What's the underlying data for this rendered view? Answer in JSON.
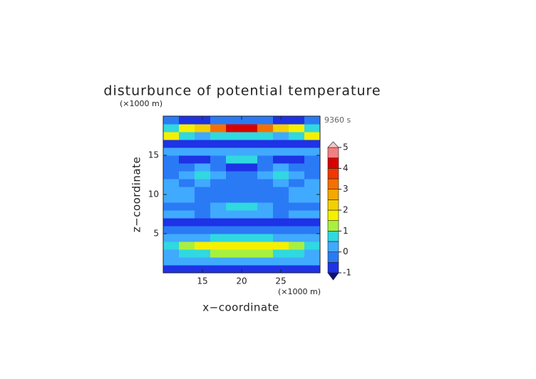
{
  "chart_data": {
    "type": "contour",
    "title": "disturbunce of potential temperature",
    "x_label": "x−coordinate",
    "y_label": "z−coordinate",
    "x_unit": "(×1000 m)",
    "y_unit": "(×1000 m)",
    "annotation": "9360 s",
    "xlim": [
      10,
      30
    ],
    "ylim": [
      0,
      20
    ],
    "xticks": [
      15,
      20,
      25
    ],
    "yticks": [
      5,
      10,
      15
    ],
    "x": [
      11,
      13,
      15,
      17,
      19,
      21,
      23,
      25,
      27,
      29
    ],
    "y": [
      0.5,
      1.5,
      2.5,
      3.5,
      4.5,
      5.5,
      6.5,
      7.5,
      8.5,
      9.5,
      10.5,
      11.5,
      12.5,
      13.5,
      14.5,
      15.5,
      16.5,
      17.5,
      18.5,
      19.5
    ],
    "z": [
      [
        -0.8,
        -0.8,
        -0.8,
        -0.8,
        -0.8,
        -0.8,
        -0.8,
        -0.8,
        -0.8,
        -0.8
      ],
      [
        0,
        0,
        0.2,
        0.3,
        0.3,
        0.3,
        0.3,
        0.2,
        0,
        0
      ],
      [
        0.3,
        0.5,
        0.8,
        1,
        1.2,
        1.2,
        1,
        0.8,
        0.5,
        0.3
      ],
      [
        0.8,
        1.2,
        1.5,
        1.8,
        1.8,
        1.8,
        1.8,
        1.5,
        1.2,
        0.8
      ],
      [
        0.2,
        0.3,
        0.4,
        0.5,
        0.5,
        0.5,
        0.5,
        0.4,
        0.3,
        0.2
      ],
      [
        -0.4,
        -0.4,
        -0.4,
        -0.4,
        -0.4,
        -0.4,
        -0.4,
        -0.4,
        -0.4,
        -0.4
      ],
      [
        -0.8,
        -0.7,
        -0.8,
        -0.9,
        -0.9,
        -0.9,
        -0.9,
        -0.8,
        -0.7,
        -0.8
      ],
      [
        0,
        0,
        -0.1,
        0,
        0.3,
        0.3,
        0,
        -0.1,
        0,
        0
      ],
      [
        -0.3,
        -0.3,
        -0.2,
        0,
        0.5,
        0.5,
        0,
        -0.2,
        -0.3,
        -0.3
      ],
      [
        0.2,
        0,
        -0.2,
        -0.2,
        -0.1,
        -0.1,
        -0.2,
        -0.2,
        0,
        0.2
      ],
      [
        0.4,
        0,
        -0.2,
        -0.3,
        -0.2,
        -0.2,
        -0.3,
        -0.2,
        0,
        0.4
      ],
      [
        0,
        -0.1,
        0,
        -0.2,
        -0.2,
        -0.2,
        -0.2,
        0,
        -0.1,
        0
      ],
      [
        -0.2,
        0.3,
        0.8,
        0.3,
        -0.4,
        -0.4,
        0.3,
        0.8,
        0.3,
        -0.2
      ],
      [
        -0.2,
        -0.1,
        0,
        -0.1,
        -0.9,
        -0.9,
        -0.1,
        0,
        -0.1,
        -0.2
      ],
      [
        -0.3,
        -0.6,
        -0.9,
        -0.4,
        0.8,
        0.8,
        -0.4,
        -0.9,
        -0.6,
        -0.3
      ],
      [
        0,
        0,
        0.2,
        0,
        0.3,
        0.3,
        0,
        0.2,
        0,
        0
      ],
      [
        -0.9,
        -0.9,
        -0.9,
        -0.9,
        -0.9,
        -0.9,
        -0.9,
        -0.9,
        -0.9,
        -0.9
      ],
      [
        1.5,
        0.6,
        0.4,
        0.6,
        0.8,
        0.8,
        0.6,
        0.4,
        0.6,
        1.5
      ],
      [
        0.8,
        1.8,
        2,
        3,
        4.2,
        4.2,
        3,
        2,
        1.8,
        0.8
      ],
      [
        -0.5,
        -0.9,
        -0.6,
        -0.3,
        -0.3,
        -0.3,
        -0.3,
        -0.6,
        -0.9,
        -0.5
      ]
    ],
    "levels": [
      -1,
      -0.5,
      0,
      0.5,
      1,
      1.5,
      2,
      2.5,
      3,
      3.5,
      4,
      4.5,
      5
    ],
    "colors": [
      "#10107a",
      "#1e32e6",
      "#2a7af5",
      "#40aaff",
      "#30d8e0",
      "#a8f040",
      "#f4f000",
      "#f5d000",
      "#f5a800",
      "#f57000",
      "#f03800",
      "#d80000",
      "#f08080",
      "#f8c8c8"
    ],
    "colorbar_ticks": [
      -1,
      0,
      1,
      2,
      3,
      4,
      5
    ]
  }
}
